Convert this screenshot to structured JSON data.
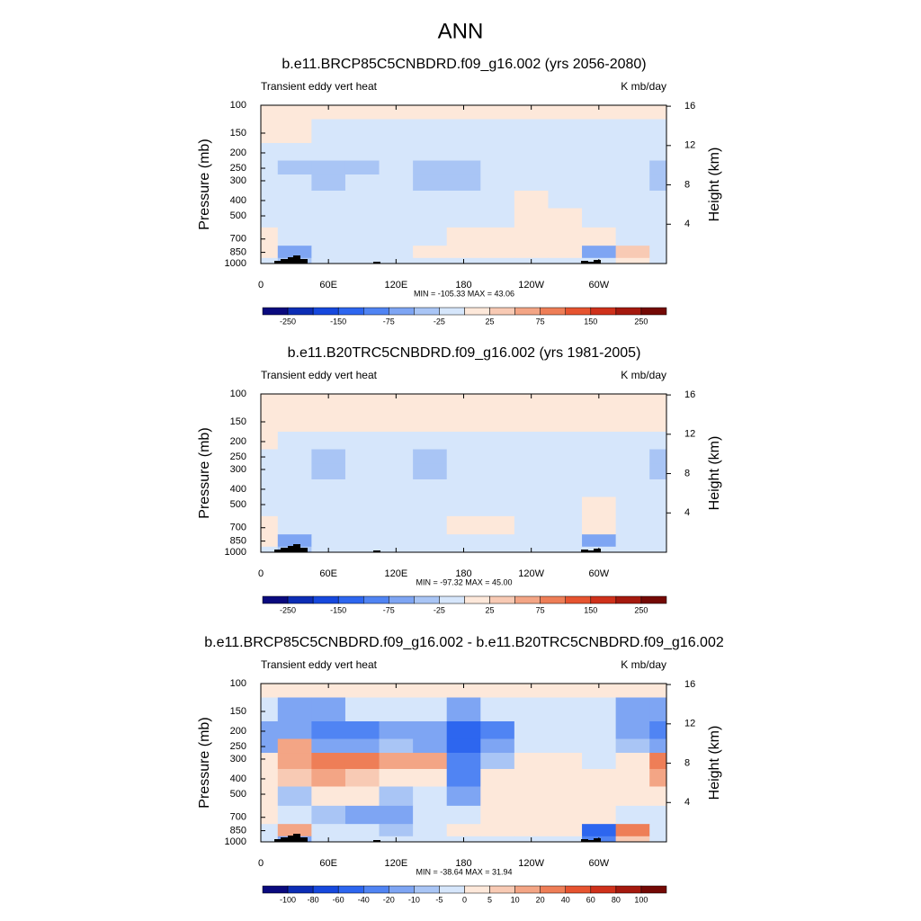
{
  "title": "ANN",
  "chart_data": [
    {
      "type": "contour",
      "title": "b.e11.BRCP85C5CNBDRD.f09_g16.002 (yrs 2056-2080)",
      "left_label": "Transient eddy vert heat",
      "right_label": "K mb/day",
      "ylabel": "Pressure (mb)",
      "y2label": "Height (km)",
      "stats": "MIN = -105.33  MAX =  43.06",
      "x": [
        0,
        30,
        60,
        90,
        120,
        150,
        180,
        210,
        240,
        270,
        300,
        330,
        360
      ],
      "levels": [
        100,
        150,
        200,
        250,
        300,
        400,
        500,
        700,
        850,
        1000
      ],
      "z": [
        [
          5,
          5,
          5,
          5,
          5,
          5,
          5,
          5,
          5,
          5,
          5,
          5,
          5
        ],
        [
          5,
          5,
          -10,
          -10,
          -10,
          -10,
          -10,
          -10,
          -10,
          -10,
          -10,
          -10,
          -10
        ],
        [
          -10,
          -10,
          -10,
          -10,
          -10,
          -10,
          -10,
          -10,
          -10,
          -10,
          -10,
          -10,
          -10
        ],
        [
          -10,
          -30,
          -40,
          -30,
          -10,
          -40,
          -30,
          -10,
          -10,
          -10,
          -10,
          -20,
          -35
        ],
        [
          -10,
          -20,
          -35,
          -20,
          -10,
          -30,
          -25,
          -10,
          -10,
          -10,
          -10,
          -10,
          -30
        ],
        [
          -10,
          -10,
          -10,
          -10,
          -10,
          -10,
          -10,
          -10,
          5,
          -10,
          -10,
          -10,
          -10
        ],
        [
          -10,
          -10,
          -10,
          -10,
          -10,
          -10,
          -10,
          -10,
          10,
          10,
          -10,
          -10,
          -10
        ],
        [
          5,
          -10,
          -10,
          -10,
          -10,
          -10,
          5,
          10,
          10,
          10,
          5,
          -10,
          -10
        ],
        [
          5,
          -60,
          -10,
          -10,
          -10,
          5,
          5,
          5,
          5,
          5,
          -60,
          30,
          -10
        ],
        [
          -10,
          -30,
          -10,
          -10,
          -10,
          -10,
          -10,
          -10,
          -10,
          -10,
          -20,
          10,
          -10
        ]
      ],
      "xlim": [
        0,
        360
      ],
      "xticks": [
        0,
        {
          "value": 60,
          "label": "60E"
        },
        {
          "value": 120,
          "label": "120E"
        },
        180,
        {
          "value": 240,
          "label": "120W"
        },
        {
          "value": 300,
          "label": "60W"
        }
      ],
      "ylim": [
        1000,
        100
      ],
      "log_y": true,
      "yticks": [
        100,
        150,
        200,
        250,
        300,
        400,
        500,
        700,
        850,
        1000
      ],
      "y2lim": [
        0,
        16.1
      ],
      "y2ticks": [
        4,
        8,
        12,
        16
      ],
      "colorbar_levels": [
        -250,
        -200,
        -150,
        -100,
        -75,
        -50,
        -25,
        0,
        25,
        50,
        75,
        100,
        150,
        200,
        250
      ],
      "colorbar_ticks": [
        -250,
        -150,
        -75,
        -25,
        25,
        75,
        150,
        250
      ],
      "colors": [
        "#0a0a7e",
        "#0c2db5",
        "#1648dd",
        "#2d66ef",
        "#5084f3",
        "#7ea5f3",
        "#a9c5f5",
        "#d6e6fb",
        "#fde8da",
        "#f8cab4",
        "#f3a585",
        "#ee7e57",
        "#e65430",
        "#cf311b",
        "#a5190e",
        "#740905"
      ]
    },
    {
      "type": "contour",
      "title": "b.e11.B20TRC5CNBDRD.f09_g16.002 (yrs 1981-2005)",
      "left_label": "Transient eddy vert heat",
      "right_label": "K mb/day",
      "ylabel": "Pressure (mb)",
      "y2label": "Height (km)",
      "stats": "MIN = -97.32  MAX =  45.00",
      "x": [
        0,
        30,
        60,
        90,
        120,
        150,
        180,
        210,
        240,
        270,
        300,
        330,
        360
      ],
      "levels": [
        100,
        150,
        200,
        250,
        300,
        400,
        500,
        700,
        850,
        1000
      ],
      "z": [
        [
          5,
          5,
          5,
          5,
          5,
          5,
          5,
          5,
          5,
          5,
          5,
          5,
          5
        ],
        [
          5,
          5,
          5,
          5,
          5,
          5,
          5,
          5,
          5,
          5,
          5,
          5,
          5
        ],
        [
          5,
          -10,
          -10,
          -10,
          -10,
          -10,
          -10,
          -10,
          -10,
          -10,
          -10,
          -10,
          -10
        ],
        [
          -10,
          -10,
          -30,
          -20,
          -10,
          -25,
          -10,
          -10,
          -10,
          -10,
          -10,
          -10,
          -25
        ],
        [
          -10,
          -20,
          -40,
          -20,
          -10,
          -30,
          -10,
          -10,
          -10,
          -10,
          -10,
          -10,
          -30
        ],
        [
          -10,
          -10,
          -10,
          -10,
          -10,
          -10,
          -10,
          -10,
          -10,
          -10,
          -10,
          -10,
          -10
        ],
        [
          -10,
          -10,
          -10,
          -10,
          -10,
          -10,
          -10,
          -10,
          -10,
          -10,
          5,
          -10,
          -10
        ],
        [
          5,
          -10,
          -10,
          -10,
          -10,
          -10,
          5,
          5,
          -10,
          -10,
          5,
          -10,
          -10
        ],
        [
          5,
          -50,
          -10,
          -10,
          -10,
          -10,
          -10,
          -10,
          -10,
          -10,
          -50,
          -10,
          -10
        ],
        [
          -10,
          -30,
          -10,
          -10,
          -10,
          -10,
          -10,
          -10,
          -10,
          -10,
          -20,
          -10,
          -10
        ]
      ],
      "xlim": [
        0,
        360
      ],
      "xticks": [
        0,
        {
          "value": 60,
          "label": "60E"
        },
        {
          "value": 120,
          "label": "120E"
        },
        180,
        {
          "value": 240,
          "label": "120W"
        },
        {
          "value": 300,
          "label": "60W"
        }
      ],
      "ylim": [
        1000,
        100
      ],
      "log_y": true,
      "yticks": [
        100,
        150,
        200,
        250,
        300,
        400,
        500,
        700,
        850,
        1000
      ],
      "y2lim": [
        0,
        16.1
      ],
      "y2ticks": [
        4,
        8,
        12,
        16
      ],
      "colorbar_levels": [
        -250,
        -200,
        -150,
        -100,
        -75,
        -50,
        -25,
        0,
        25,
        50,
        75,
        100,
        150,
        200,
        250
      ],
      "colorbar_ticks": [
        -250,
        -150,
        -75,
        -25,
        25,
        75,
        150,
        250
      ],
      "colors": [
        "#0a0a7e",
        "#0c2db5",
        "#1648dd",
        "#2d66ef",
        "#5084f3",
        "#7ea5f3",
        "#a9c5f5",
        "#d6e6fb",
        "#fde8da",
        "#f8cab4",
        "#f3a585",
        "#ee7e57",
        "#e65430",
        "#cf311b",
        "#a5190e",
        "#740905"
      ]
    },
    {
      "type": "contour",
      "title": "b.e11.BRCP85C5CNBDRD.f09_g16.002 - b.e11.B20TRC5CNBDRD.f09_g16.002",
      "left_label": "Transient eddy vert heat",
      "right_label": "K mb/day",
      "ylabel": "Pressure (mb)",
      "y2label": "Height (km)",
      "stats": "MIN = -38.64  MAX =  31.94",
      "x": [
        0,
        30,
        60,
        90,
        120,
        150,
        180,
        210,
        240,
        270,
        300,
        330,
        360
      ],
      "levels": [
        100,
        150,
        200,
        250,
        300,
        400,
        500,
        700,
        850,
        1000
      ],
      "z": [
        [
          3,
          3,
          3,
          3,
          3,
          3,
          3,
          3,
          3,
          3,
          3,
          3,
          3
        ],
        [
          -3,
          -10,
          -15,
          -3,
          -3,
          -3,
          -10,
          -3,
          -3,
          -3,
          -3,
          -10,
          -15
        ],
        [
          -10,
          -15,
          -30,
          -30,
          -10,
          -15,
          -40,
          -20,
          -3,
          -3,
          -3,
          -10,
          -30
        ],
        [
          -10,
          15,
          -10,
          -15,
          -5,
          -10,
          -40,
          -15,
          -3,
          -3,
          -3,
          -5,
          -15
        ],
        [
          5,
          15,
          40,
          25,
          20,
          15,
          -30,
          -5,
          3,
          3,
          -3,
          3,
          25
        ],
        [
          3,
          10,
          15,
          10,
          5,
          3,
          -20,
          3,
          3,
          3,
          3,
          3,
          15
        ],
        [
          3,
          -5,
          3,
          3,
          -5,
          -3,
          -10,
          3,
          3,
          3,
          3,
          3,
          3
        ],
        [
          3,
          -3,
          -5,
          -10,
          -10,
          -3,
          -3,
          3,
          3,
          3,
          3,
          -3,
          -3
        ],
        [
          -3,
          15,
          -3,
          -3,
          -5,
          -3,
          3,
          3,
          3,
          3,
          -40,
          40,
          -3
        ],
        [
          -3,
          -10,
          -3,
          -3,
          -3,
          -3,
          -3,
          -3,
          -3,
          -3,
          -20,
          10,
          -3
        ]
      ],
      "xlim": [
        0,
        360
      ],
      "xticks": [
        0,
        {
          "value": 60,
          "label": "60E"
        },
        {
          "value": 120,
          "label": "120E"
        },
        180,
        {
          "value": 240,
          "label": "120W"
        },
        {
          "value": 300,
          "label": "60W"
        }
      ],
      "ylim": [
        1000,
        100
      ],
      "log_y": true,
      "yticks": [
        100,
        150,
        200,
        250,
        300,
        400,
        500,
        700,
        850,
        1000
      ],
      "y2lim": [
        0,
        16.1
      ],
      "y2ticks": [
        4,
        8,
        12,
        16
      ],
      "colorbar_levels": [
        -100,
        -80,
        -60,
        -40,
        -20,
        -10,
        -5,
        0,
        5,
        10,
        20,
        40,
        60,
        80,
        100
      ],
      "colorbar_ticks": [
        -100,
        -80,
        -60,
        -40,
        -20,
        -10,
        -5,
        0,
        5,
        10,
        20,
        40,
        60,
        80,
        100
      ],
      "colors": [
        "#0a0a7e",
        "#0c2db5",
        "#1648dd",
        "#2d66ef",
        "#5084f3",
        "#7ea5f3",
        "#a9c5f5",
        "#d6e6fb",
        "#fde8da",
        "#f8cab4",
        "#f3a585",
        "#ee7e57",
        "#e65430",
        "#cf311b",
        "#a5190e",
        "#740905"
      ]
    }
  ]
}
